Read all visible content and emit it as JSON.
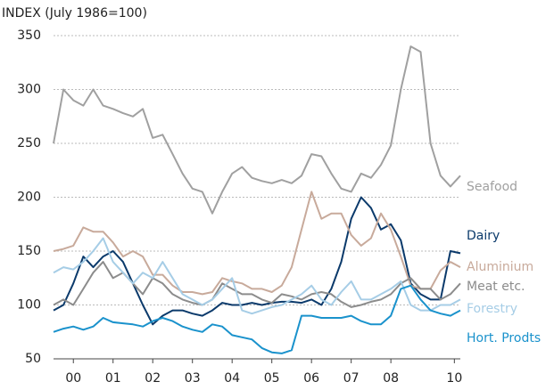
{
  "chart_data": {
    "type": "line",
    "title": "INDEX (July 1986=100)",
    "x": [
      2000,
      2000.25,
      2000.5,
      2000.75,
      2001,
      2001.25,
      2001.5,
      2001.75,
      2002,
      2002.25,
      2002.5,
      2002.75,
      2003,
      2003.25,
      2003.5,
      2003.75,
      2004,
      2004.25,
      2004.5,
      2004.75,
      2005,
      2005.25,
      2005.5,
      2005.75,
      2006,
      2006.25,
      2006.5,
      2006.75,
      2007,
      2007.25,
      2007.5,
      2007.75,
      2008,
      2008.25,
      2008.5,
      2008.75,
      2009,
      2009.25,
      2009.5,
      2009.75,
      2010,
      2010.25
    ],
    "xlim": [
      2000,
      2010.25
    ],
    "xticks": [
      {
        "value": 2000.5,
        "label": "00"
      },
      {
        "value": 2001.5,
        "label": "01"
      },
      {
        "value": 2002.5,
        "label": "02"
      },
      {
        "value": 2003.5,
        "label": "03"
      },
      {
        "value": 2004.5,
        "label": "04"
      },
      {
        "value": 2005.5,
        "label": "05"
      },
      {
        "value": 2006.5,
        "label": "06"
      },
      {
        "value": 2007.5,
        "label": "07"
      },
      {
        "value": 2008.5,
        "label": "08"
      },
      {
        "value": 2010.1,
        "label": "10"
      }
    ],
    "ylim": [
      50,
      350
    ],
    "yticks": [
      50,
      100,
      150,
      200,
      250,
      300,
      350
    ],
    "grid": true,
    "series": [
      {
        "name": "Seafood",
        "color": "#a0a0a0",
        "values": [
          250,
          300,
          290,
          285,
          300,
          285,
          282,
          278,
          275,
          282,
          255,
          258,
          240,
          222,
          208,
          205,
          185,
          205,
          222,
          228,
          218,
          215,
          213,
          216,
          213,
          220,
          240,
          238,
          222,
          208,
          205,
          222,
          218,
          230,
          248,
          300,
          340,
          335,
          250,
          220,
          210,
          220
        ]
      },
      {
        "name": "Dairy",
        "color": "#0b3a6b",
        "values": [
          95,
          100,
          120,
          145,
          135,
          145,
          150,
          140,
          120,
          100,
          82,
          90,
          95,
          95,
          92,
          90,
          95,
          102,
          100,
          100,
          102,
          100,
          102,
          103,
          103,
          102,
          105,
          100,
          115,
          140,
          180,
          200,
          190,
          170,
          175,
          160,
          120,
          110,
          105,
          105,
          150,
          148
        ]
      },
      {
        "name": "Aluminium",
        "color": "#c8aa9b",
        "values": [
          150,
          152,
          155,
          172,
          168,
          168,
          158,
          145,
          150,
          145,
          128,
          128,
          118,
          112,
          112,
          110,
          112,
          125,
          122,
          120,
          115,
          115,
          112,
          118,
          135,
          170,
          205,
          180,
          185,
          185,
          165,
          155,
          162,
          185,
          170,
          145,
          118,
          115,
          115,
          132,
          140,
          135
        ]
      },
      {
        "name": "Meat etc.",
        "color": "#8c8c8c",
        "values": [
          100,
          105,
          100,
          115,
          130,
          140,
          125,
          130,
          120,
          110,
          125,
          120,
          110,
          105,
          102,
          100,
          105,
          120,
          115,
          110,
          110,
          105,
          102,
          110,
          108,
          105,
          110,
          112,
          110,
          103,
          98,
          100,
          103,
          105,
          110,
          120,
          125,
          115,
          115,
          105,
          110,
          120
        ]
      },
      {
        "name": "Forestry",
        "color": "#a6cde6",
        "values": [
          130,
          135,
          133,
          140,
          150,
          162,
          140,
          130,
          120,
          130,
          125,
          140,
          125,
          110,
          105,
          100,
          105,
          115,
          125,
          95,
          92,
          95,
          98,
          100,
          105,
          110,
          118,
          105,
          100,
          112,
          122,
          105,
          105,
          110,
          115,
          122,
          100,
          95,
          95,
          100,
          100,
          105
        ]
      },
      {
        "name": "Hort. Prodts",
        "color": "#1a92cc",
        "values": [
          75,
          78,
          80,
          77,
          80,
          88,
          84,
          83,
          82,
          80,
          85,
          88,
          85,
          80,
          77,
          75,
          82,
          80,
          72,
          70,
          68,
          60,
          56,
          55,
          58,
          90,
          90,
          88,
          88,
          88,
          90,
          85,
          82,
          82,
          90,
          115,
          118,
          105,
          95,
          92,
          90,
          95
        ]
      }
    ]
  }
}
